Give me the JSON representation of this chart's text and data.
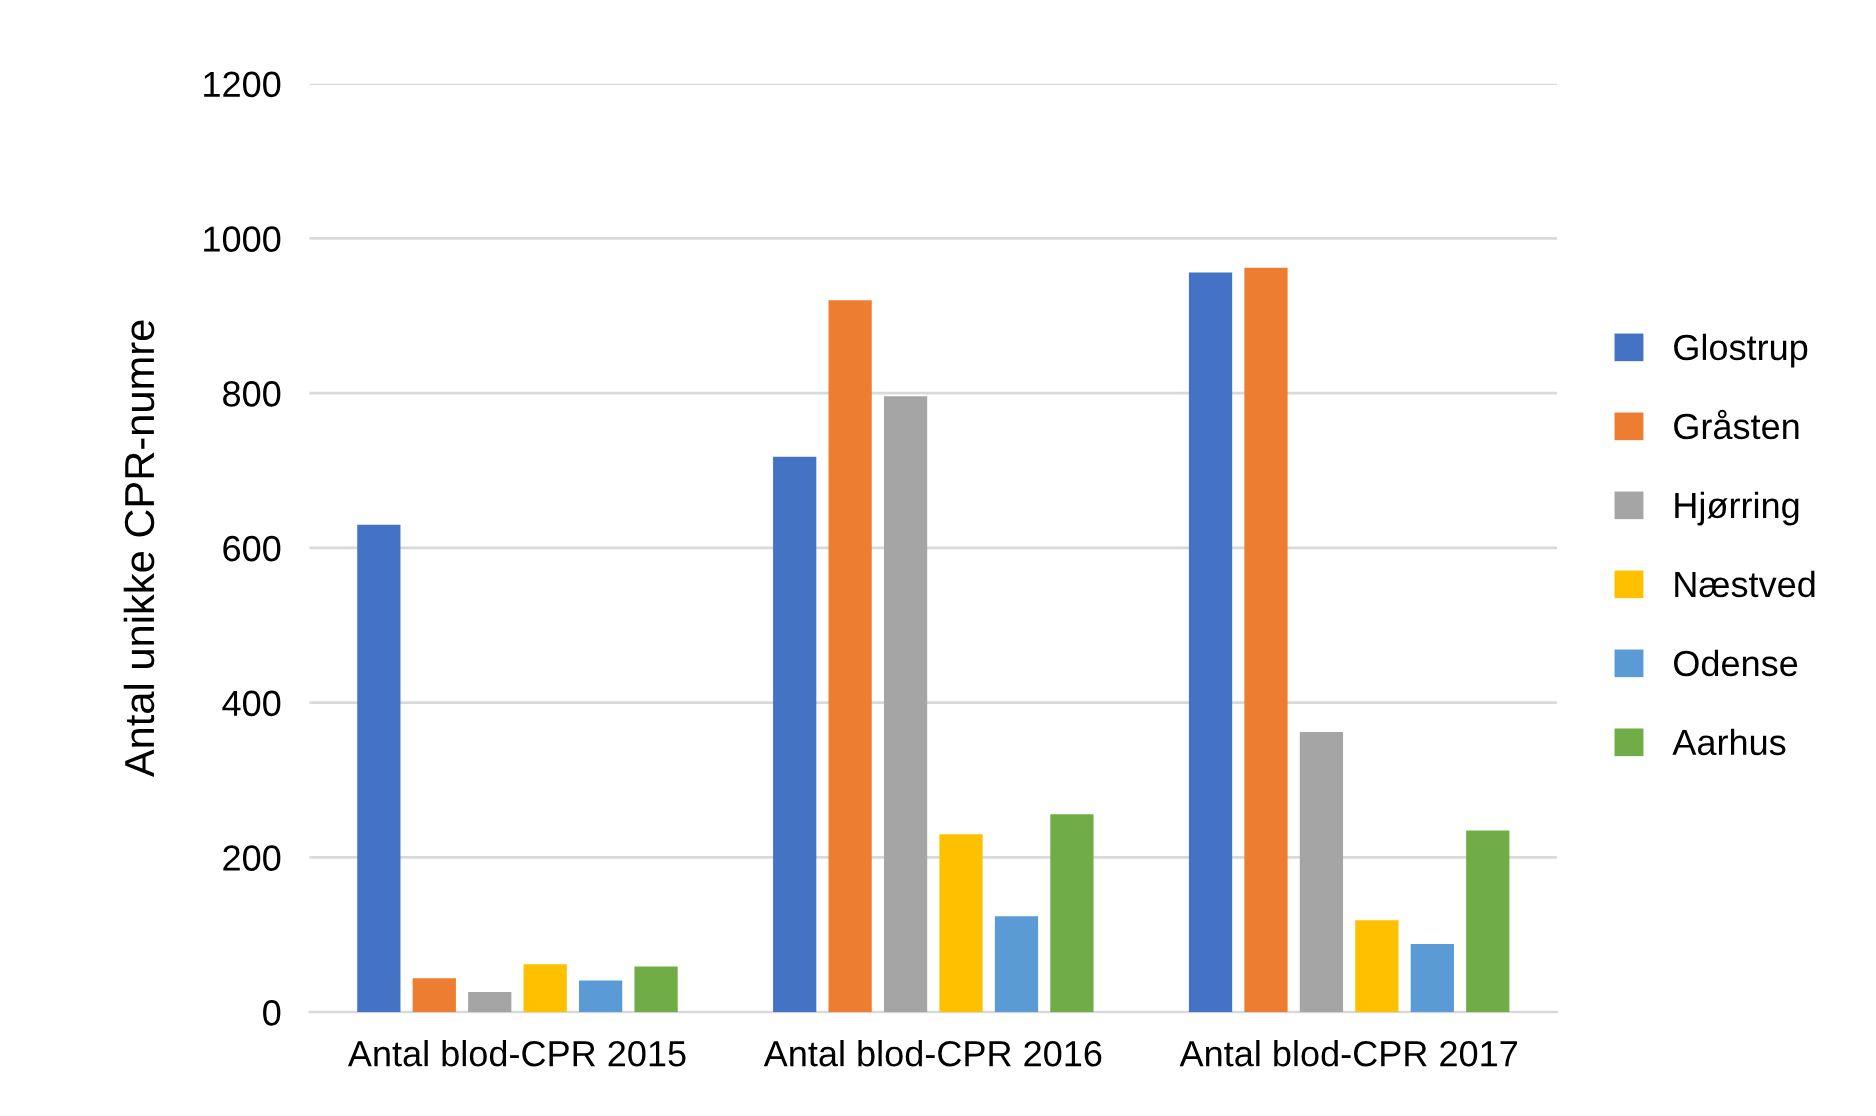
{
  "chart_data": {
    "type": "bar",
    "ylabel": "Antal unikke CPR-numre",
    "categories": [
      "Antal blod-CPR 2015",
      "Antal blod-CPR 2016",
      "Antal blod-CPR 2017"
    ],
    "series": [
      {
        "name": "Glostrup",
        "color": "#4472c4",
        "values": [
          630,
          718,
          956
        ]
      },
      {
        "name": "Gråsten",
        "color": "#ed7d31",
        "values": [
          44,
          920,
          962
        ]
      },
      {
        "name": "Hjørring",
        "color": "#a5a5a5",
        "values": [
          26,
          796,
          362
        ]
      },
      {
        "name": "Næstved",
        "color": "#ffc000",
        "values": [
          62,
          230,
          119
        ]
      },
      {
        "name": "Odense",
        "color": "#5b9bd5",
        "values": [
          41,
          124,
          88
        ]
      },
      {
        "name": "Aarhus",
        "color": "#70ad47",
        "values": [
          59,
          256,
          235
        ]
      }
    ],
    "ylim": [
      0,
      1200
    ],
    "yticks": [
      0,
      200,
      400,
      600,
      800,
      1000,
      1200
    ],
    "grid": "y",
    "legend": "right"
  }
}
